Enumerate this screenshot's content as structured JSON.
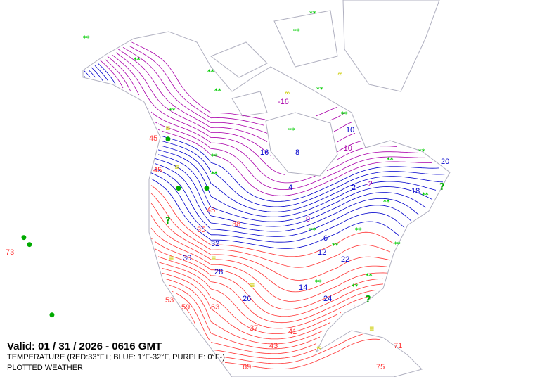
{
  "legend": {
    "valid": "Valid: 01 / 31 / 2026  -  0616 GMT",
    "temperature": "TEMPERATURE (RED:33°F+; BLUE: 1°F-32°F, PURPLE: 0°F-)",
    "plotted": "PLOTTED WEATHER"
  },
  "colors": {
    "warm": "#ff3333",
    "cool": "#0000cc",
    "cold": "#aa00aa",
    "coast": "#b0b0c0",
    "snow": "#00cc00",
    "rain": "#00aa00",
    "fog": "#cccc00"
  },
  "contour_interval_f": 3,
  "contour_labels": [
    "45",
    "45",
    "45",
    "38",
    "35",
    "32",
    "30",
    "28",
    "26",
    "24",
    "22",
    "16",
    "14",
    "10",
    "8",
    "6",
    "4",
    "2",
    "0",
    "-2",
    "-10",
    "-16",
    "53",
    "59",
    "63",
    "69",
    "71",
    "75",
    "41",
    "43",
    "37",
    "20",
    "18",
    "12",
    "73"
  ],
  "weather_symbols": {
    "snow": "**",
    "rain": "●",
    "fog": "≡",
    "shower": "?",
    "haze": "∞"
  }
}
